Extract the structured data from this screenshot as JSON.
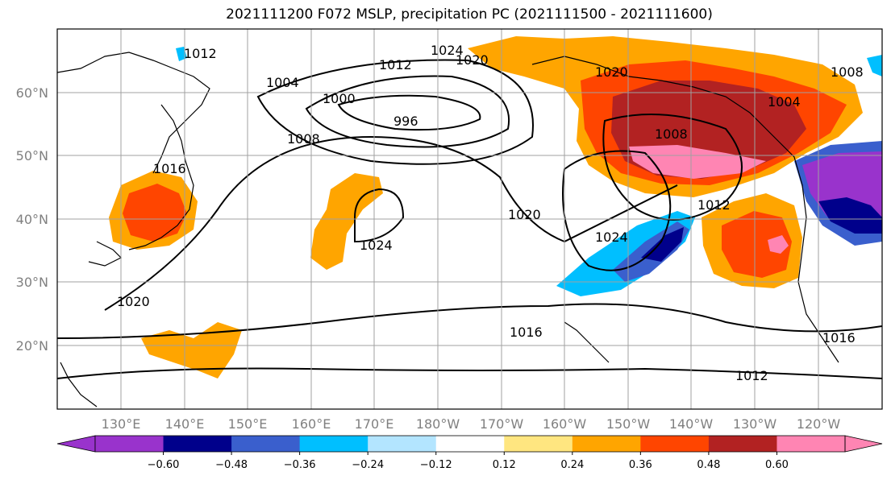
{
  "title": "2021111200 F072 MSLP, precipitation PC (2021111500 - 2021111600)",
  "lat_ticks": [
    "60°N",
    "50°N",
    "40°N",
    "30°N",
    "20°N"
  ],
  "lon_ticks": [
    "130°E",
    "140°E",
    "150°E",
    "160°E",
    "170°E",
    "180°W",
    "170°W",
    "160°W",
    "150°W",
    "140°W",
    "130°W",
    "120°W"
  ],
  "isobar_labels": [
    "1012",
    "1024",
    "1020",
    "1012",
    "1004",
    "1000",
    "996",
    "1008",
    "1020",
    "1024",
    "1020",
    "1004",
    "1008",
    "1024",
    "1012",
    "1016",
    "1016",
    "1012",
    "1020",
    "1008",
    "1016"
  ],
  "colorbar": {
    "colors": [
      "#9933cc",
      "#00008b",
      "#3a5fcd",
      "#00bfff",
      "#b3e5ff",
      "#ffffff",
      "#ffe680",
      "#ffa500",
      "#ff4500",
      "#b22222",
      "#ff85b3"
    ],
    "tick_labels": [
      "−0.60",
      "−0.48",
      "−0.36",
      "−0.24",
      "−0.12",
      "0.12",
      "0.24",
      "0.36",
      "0.48",
      "0.60"
    ],
    "tick_values": [
      -0.6,
      -0.48,
      -0.36,
      -0.24,
      -0.12,
      0.12,
      0.24,
      0.36,
      0.48,
      0.6
    ]
  },
  "chart_data": {
    "type": "heatmap",
    "variable": "precipitation PC",
    "contour_variable": "MSLP",
    "lon_range": [
      "120°E",
      "115°W"
    ],
    "lat_range": [
      "10°N",
      "70°N"
    ],
    "color_levels": [
      -0.6,
      -0.48,
      -0.36,
      -0.24,
      -0.12,
      0.12,
      0.24,
      0.36,
      0.48,
      0.6
    ]
  }
}
